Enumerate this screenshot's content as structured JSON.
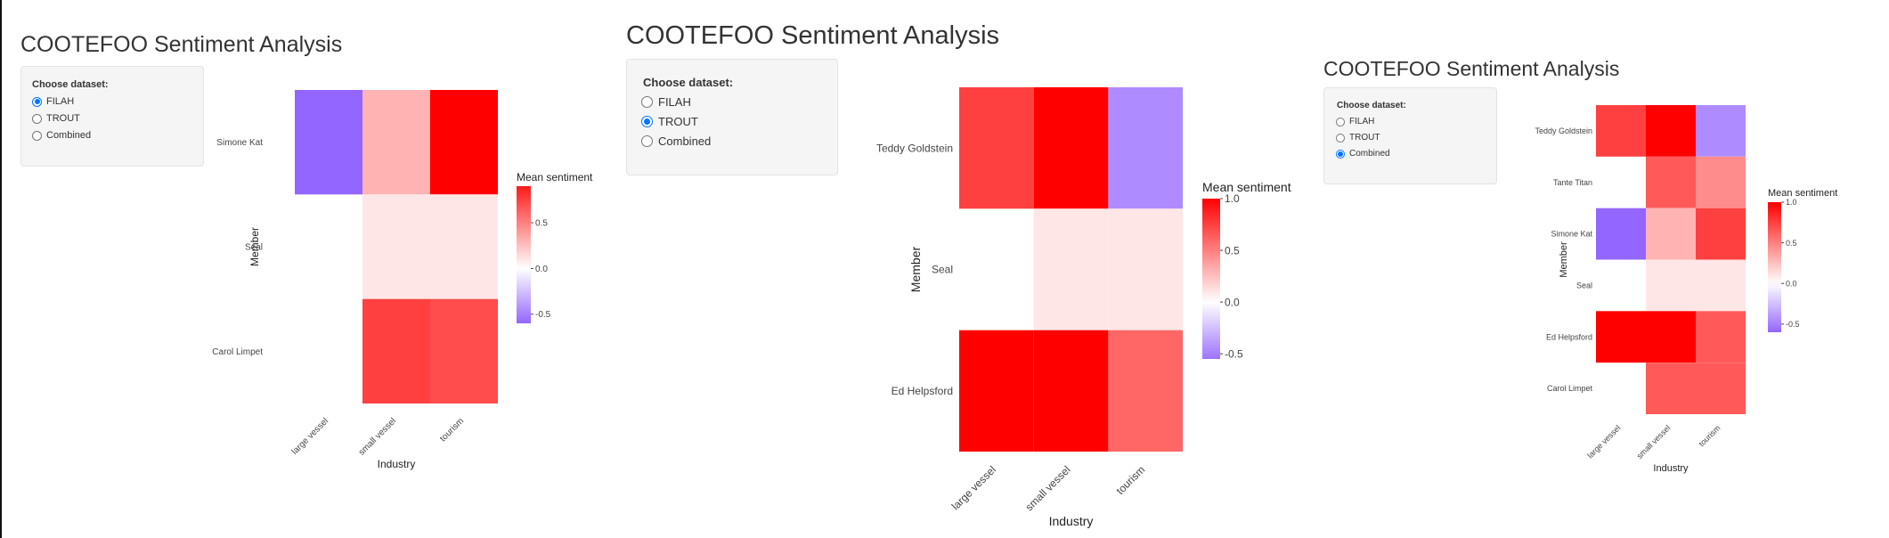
{
  "panels": [
    {
      "title": "COOTEFOO Sentiment Analysis",
      "control_label": "Choose dataset:",
      "options": [
        "FILAH",
        "TROUT",
        "Combined"
      ],
      "selected": "FILAH",
      "chart_data": {
        "type": "heatmap",
        "x": [
          "large vessel",
          "small vessel",
          "tourism"
        ],
        "y": [
          "Simone Kat",
          "Seal",
          "Carol Limpet"
        ],
        "values": [
          [
            -0.6,
            0.3,
            1.0
          ],
          [
            null,
            0.1,
            0.1
          ],
          [
            null,
            0.75,
            0.7
          ]
        ],
        "xlabel": "Industry",
        "ylabel": "Member",
        "legend_title": "Mean sentiment",
        "colorbar_ticks": [
          "0.5",
          "0.0",
          "-0.5"
        ],
        "colorbar_tick_values": [
          0.5,
          0,
          -0.5
        ],
        "zlim": [
          -0.6,
          0.9
        ]
      }
    },
    {
      "title": "COOTEFOO Sentiment Analysis",
      "control_label": "Choose dataset:",
      "options": [
        "FILAH",
        "TROUT",
        "Combined"
      ],
      "selected": "TROUT",
      "chart_data": {
        "type": "heatmap",
        "x": [
          "large vessel",
          "small vessel",
          "tourism"
        ],
        "y": [
          "Teddy Goldstein",
          "Seal",
          "Ed Helpsford"
        ],
        "values": [
          [
            0.75,
            1.0,
            -0.45
          ],
          [
            null,
            0.1,
            0.1
          ],
          [
            1.0,
            1.0,
            0.6
          ]
        ],
        "xlabel": "Industry",
        "ylabel": "Member",
        "legend_title": "Mean sentiment",
        "colorbar_ticks": [
          "1.0",
          "0.5",
          "0.0",
          "-0.5"
        ],
        "colorbar_tick_values": [
          1,
          0.5,
          0,
          -0.5
        ],
        "zlim": [
          -0.55,
          1.0
        ]
      }
    },
    {
      "title": "COOTEFOO Sentiment Analysis",
      "control_label": "Choose dataset:",
      "options": [
        "FILAH",
        "TROUT",
        "Combined"
      ],
      "selected": "Combined",
      "chart_data": {
        "type": "heatmap",
        "x": [
          "large vessel",
          "small vessel",
          "tourism"
        ],
        "y": [
          "Teddy Goldstein",
          "Tante Titan",
          "Simone Kat",
          "Seal",
          "Ed Helpsford",
          "Carol Limpet"
        ],
        "values": [
          [
            0.75,
            1.0,
            -0.45
          ],
          [
            null,
            0.65,
            0.45
          ],
          [
            -0.6,
            0.3,
            0.75
          ],
          [
            null,
            0.1,
            0.1
          ],
          [
            1.0,
            1.0,
            0.65
          ],
          [
            null,
            0.65,
            0.65
          ]
        ],
        "xlabel": "Industry",
        "ylabel": "Member",
        "legend_title": "Mean sentiment",
        "colorbar_ticks": [
          "1.0",
          "0.5",
          "0.0",
          "-0.5"
        ],
        "colorbar_tick_values": [
          1,
          0.5,
          0,
          -0.5
        ],
        "zlim": [
          -0.6,
          1.0
        ]
      }
    }
  ]
}
